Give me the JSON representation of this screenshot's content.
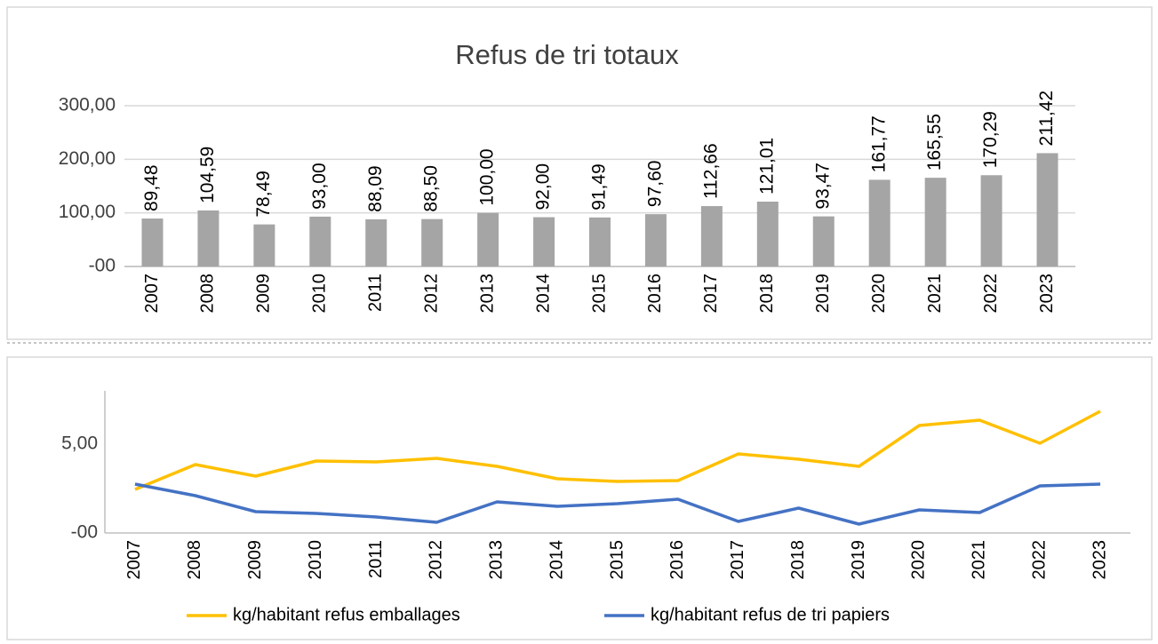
{
  "chart_data": [
    {
      "type": "bar",
      "title": "Refus de tri totaux",
      "categories": [
        "2007",
        "2008",
        "2009",
        "2010",
        "2011",
        "2012",
        "2013",
        "2014",
        "2015",
        "2016",
        "2017",
        "2018",
        "2019",
        "2020",
        "2021",
        "2022",
        "2023"
      ],
      "values": [
        89.48,
        104.59,
        78.49,
        93.0,
        88.09,
        88.5,
        100.0,
        92.0,
        91.49,
        97.6,
        112.66,
        121.01,
        93.47,
        161.77,
        165.55,
        170.29,
        211.42
      ],
      "value_labels": [
        "89,48",
        "104,59",
        "78,49",
        "93,00",
        "88,09",
        "88,50",
        "100,00",
        "92,00",
        "91,49",
        "97,60",
        "112,66",
        "121,01",
        "93,47",
        "161,77",
        "165,55",
        "170,29",
        "211,42"
      ],
      "color": "#a5a5a5",
      "ylim": [
        0,
        300
      ],
      "yticks": [
        {
          "value": 0,
          "label": "-00"
        },
        {
          "value": 100,
          "label": "100,00"
        },
        {
          "value": 200,
          "label": "200,00"
        },
        {
          "value": 300,
          "label": "300,00"
        }
      ],
      "grid": true
    },
    {
      "type": "line",
      "categories": [
        "2007",
        "2008",
        "2009",
        "2010",
        "2011",
        "2012",
        "2013",
        "2014",
        "2015",
        "2016",
        "2017",
        "2018",
        "2019",
        "2020",
        "2021",
        "2022",
        "2023"
      ],
      "series": [
        {
          "name": "kg/habitant refus emballages",
          "color": "#ffc000",
          "values": [
            2.45,
            3.85,
            3.2,
            4.05,
            4.0,
            4.2,
            3.75,
            3.05,
            2.9,
            2.95,
            4.45,
            4.15,
            3.75,
            6.05,
            6.35,
            5.05,
            6.85
          ]
        },
        {
          "name": "kg/habitant refus de tri papiers",
          "color": "#4472c4",
          "values": [
            2.75,
            2.1,
            1.2,
            1.1,
            0.9,
            0.6,
            1.75,
            1.5,
            1.65,
            1.9,
            0.65,
            1.4,
            0.5,
            1.3,
            1.15,
            2.65,
            2.75
          ]
        }
      ],
      "ylim": [
        0,
        8
      ],
      "yticks": [
        {
          "value": 0,
          "label": "-00"
        },
        {
          "value": 5,
          "label": "5,00"
        }
      ],
      "grid": false,
      "legend": "bottom"
    }
  ]
}
